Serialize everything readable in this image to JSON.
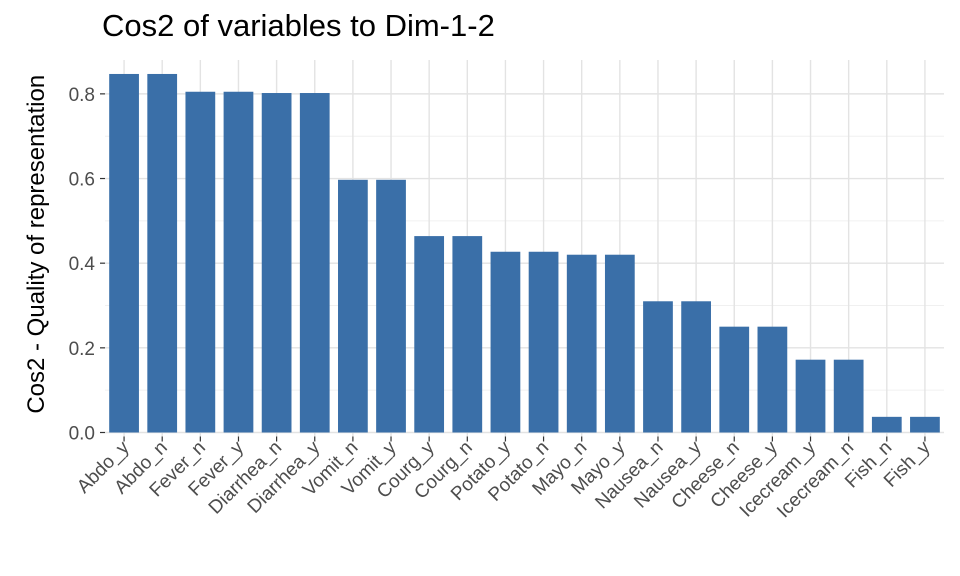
{
  "chart_data": {
    "type": "bar",
    "title": "Cos2 of variables to Dim-1-2",
    "xlabel": "",
    "ylabel": "Cos2 - Quality of representation",
    "ylim": [
      0,
      0.88
    ],
    "yticks": [
      0.0,
      0.2,
      0.4,
      0.6,
      0.8
    ],
    "ytick_labels": [
      "0.0",
      "0.2",
      "0.4",
      "0.6",
      "0.8"
    ],
    "grid": true,
    "bar_color": "#3A6FA8",
    "categories": [
      "Abdo_y",
      "Abdo_n",
      "Fever_n",
      "Fever_y",
      "Diarrhea_n",
      "Diarrhea_y",
      "Vomit_n",
      "Vomit_y",
      "Courg_y",
      "Courg_n",
      "Potato_y",
      "Potato_n",
      "Mayo_n",
      "Mayo_y",
      "Nausea_n",
      "Nausea_y",
      "Cheese_n",
      "Cheese_y",
      "Icecream_y",
      "Icecream_n",
      "Fish_n",
      "Fish_y"
    ],
    "values": [
      0.847,
      0.847,
      0.805,
      0.805,
      0.802,
      0.802,
      0.597,
      0.597,
      0.464,
      0.464,
      0.427,
      0.427,
      0.42,
      0.42,
      0.31,
      0.31,
      0.25,
      0.25,
      0.172,
      0.172,
      0.037,
      0.037
    ]
  }
}
